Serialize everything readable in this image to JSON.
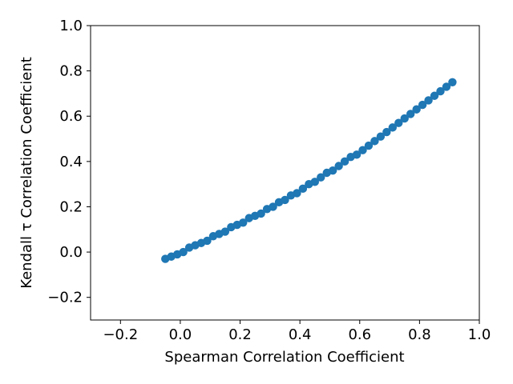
{
  "chart_data": {
    "type": "scatter",
    "title": "",
    "xlabel": "Spearman Correlation Coefficient",
    "ylabel": "Kendall τ Correlation Coefficient",
    "xlim": [
      -0.3,
      1.0
    ],
    "ylim": [
      -0.3,
      1.0
    ],
    "x_ticks": [
      -0.2,
      0.0,
      0.2,
      0.4,
      0.6,
      0.8,
      1.0
    ],
    "y_ticks": [
      -0.2,
      0.0,
      0.2,
      0.4,
      0.6,
      0.8,
      1.0
    ],
    "x_tick_labels": [
      "−0.2",
      "0.0",
      "0.2",
      "0.4",
      "0.6",
      "0.8",
      "1.0"
    ],
    "y_tick_labels": [
      "−0.2",
      "0.0",
      "0.2",
      "0.4",
      "0.6",
      "0.8",
      "1.0"
    ],
    "grid": false,
    "marker_color": "#1f77b4",
    "series": [
      {
        "points": [
          [
            -0.05,
            -0.03
          ],
          [
            -0.03,
            -0.02
          ],
          [
            -0.01,
            -0.01
          ],
          [
            0.01,
            0.0
          ],
          [
            0.03,
            0.02
          ],
          [
            0.05,
            0.03
          ],
          [
            0.07,
            0.04
          ],
          [
            0.09,
            0.05
          ],
          [
            0.11,
            0.07
          ],
          [
            0.13,
            0.08
          ],
          [
            0.15,
            0.09
          ],
          [
            0.17,
            0.11
          ],
          [
            0.19,
            0.12
          ],
          [
            0.21,
            0.13
          ],
          [
            0.23,
            0.15
          ],
          [
            0.25,
            0.16
          ],
          [
            0.27,
            0.17
          ],
          [
            0.29,
            0.19
          ],
          [
            0.31,
            0.2
          ],
          [
            0.33,
            0.22
          ],
          [
            0.35,
            0.23
          ],
          [
            0.37,
            0.25
          ],
          [
            0.39,
            0.26
          ],
          [
            0.41,
            0.28
          ],
          [
            0.43,
            0.3
          ],
          [
            0.45,
            0.31
          ],
          [
            0.47,
            0.33
          ],
          [
            0.49,
            0.35
          ],
          [
            0.51,
            0.36
          ],
          [
            0.53,
            0.38
          ],
          [
            0.55,
            0.4
          ],
          [
            0.57,
            0.42
          ],
          [
            0.59,
            0.43
          ],
          [
            0.61,
            0.45
          ],
          [
            0.63,
            0.47
          ],
          [
            0.65,
            0.49
          ],
          [
            0.67,
            0.51
          ],
          [
            0.69,
            0.53
          ],
          [
            0.71,
            0.55
          ],
          [
            0.73,
            0.57
          ],
          [
            0.75,
            0.59
          ],
          [
            0.77,
            0.61
          ],
          [
            0.79,
            0.63
          ],
          [
            0.81,
            0.65
          ],
          [
            0.83,
            0.67
          ],
          [
            0.85,
            0.69
          ],
          [
            0.87,
            0.71
          ],
          [
            0.89,
            0.73
          ],
          [
            0.91,
            0.75
          ]
        ]
      }
    ]
  }
}
